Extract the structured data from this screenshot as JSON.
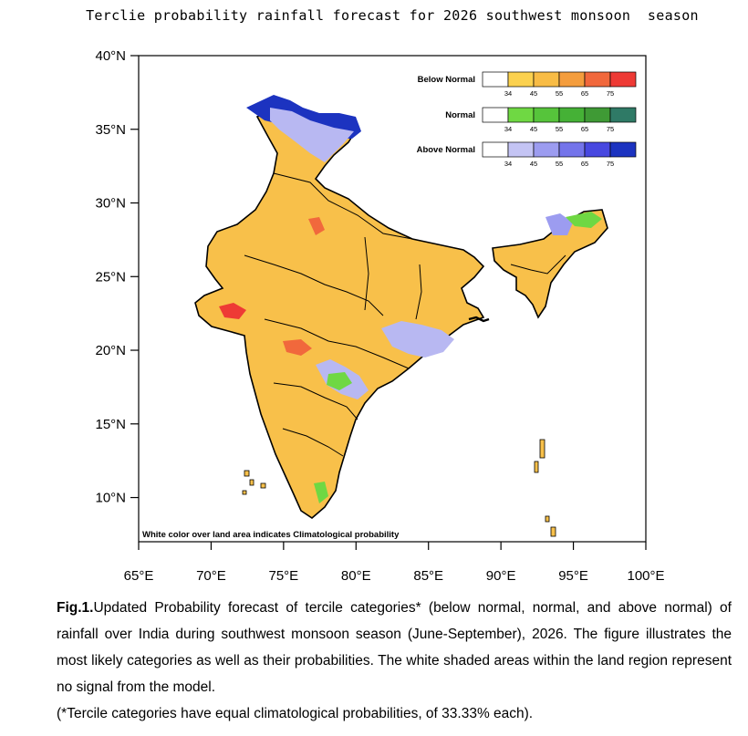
{
  "title": "Terclie probability rainfall forecast for 2026 southwest monsoon  season",
  "axes": {
    "lat_labels": [
      "40°N",
      "35°N",
      "30°N",
      "25°N",
      "20°N",
      "15°N",
      "10°N"
    ],
    "lon_labels": [
      "65°E",
      "70°E",
      "75°E",
      "80°E",
      "85°E",
      "90°E",
      "95°E",
      "100°E"
    ],
    "lat_range": [
      7,
      40
    ],
    "lon_range": [
      65,
      100
    ]
  },
  "legend": {
    "rows": [
      {
        "label": "Below Normal",
        "colors": [
          "#ffffff",
          "#fbd14f",
          "#f8bc45",
          "#f49d3d",
          "#f1683c",
          "#ee3a35"
        ]
      },
      {
        "label": "Normal",
        "colors": [
          "#ffffff",
          "#6fd843",
          "#56c43b",
          "#45b136",
          "#3f9a35",
          "#2f7a66"
        ]
      },
      {
        "label": "Above Normal",
        "colors": [
          "#ffffff",
          "#c4c4f4",
          "#9c9cf0",
          "#7474ea",
          "#4848e0",
          "#1c33c0"
        ]
      }
    ],
    "ticks": [
      "34",
      "45",
      "55",
      "65",
      "75"
    ]
  },
  "note": "White color over land area indicates Climatological probability",
  "caption": {
    "fig_label": "Fig.1.",
    "text": "Updated Probability forecast of tercile categories* (below normal, normal, and above normal) of rainfall over India during  southwest monsoon season (June-September), 2026. The figure illustrates the most likely categories as well as their probabilities. The white shaded areas within the land region represent no signal from the model.",
    "footnote": "(*Tercile categories have equal climatological probabilities, of 33.33% each)."
  }
}
